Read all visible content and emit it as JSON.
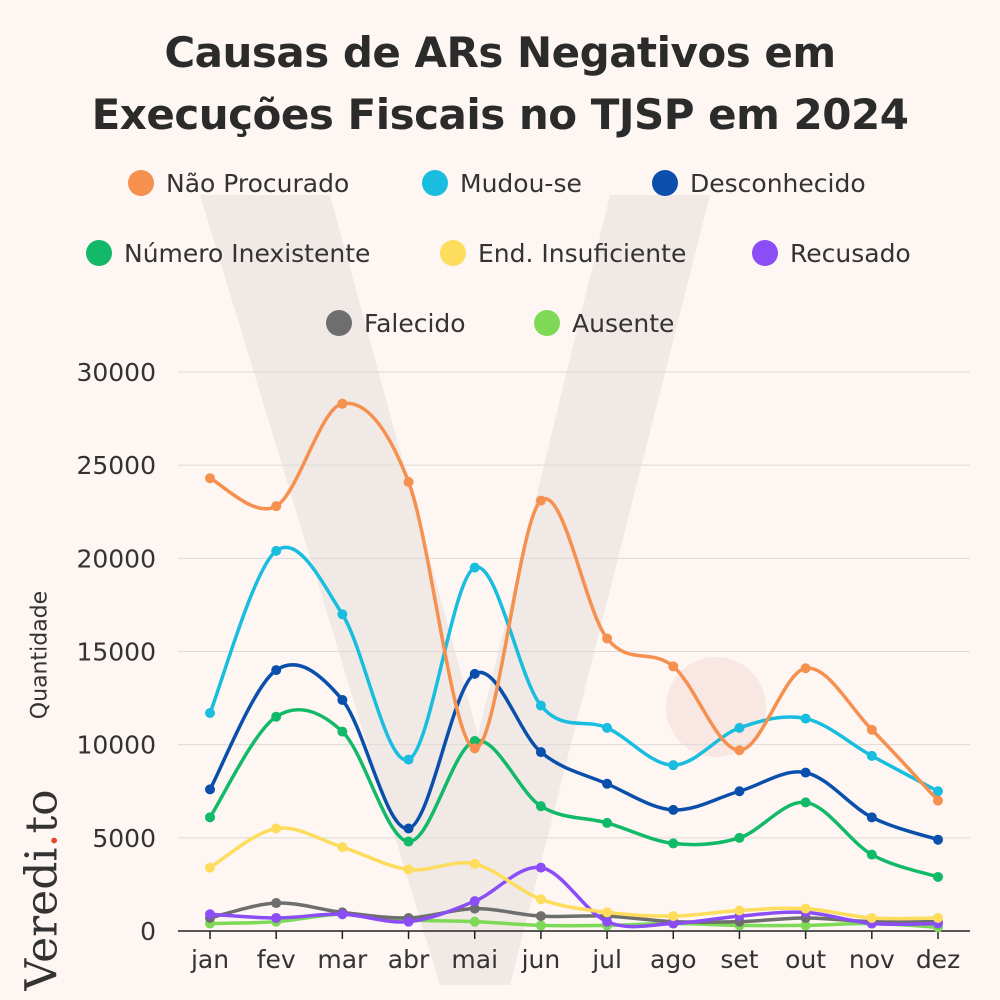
{
  "title_lines": [
    "Causas de ARs Negativos em",
    "Execuções Fiscais no TJSP em 2024"
  ],
  "brand": {
    "name_part1": "Veredi",
    "name_dot": ".",
    "name_part2": "to"
  },
  "chart_data": {
    "type": "line",
    "title": "Causas de ARs Negativos em Execuções Fiscais no TJSP em 2024",
    "xlabel": "",
    "ylabel": "Quantidade",
    "ylim": [
      0,
      30000
    ],
    "yticks": [
      0,
      5000,
      10000,
      15000,
      20000,
      25000,
      30000
    ],
    "grid": "horizontal",
    "legend_placement": "top",
    "categories": [
      "jan",
      "fev",
      "mar",
      "abr",
      "mai",
      "jun",
      "jul",
      "ago",
      "set",
      "out",
      "nov",
      "dez"
    ],
    "series": [
      {
        "name": "Não Procurado",
        "color": "#f5904f",
        "values": [
          24300,
          22800,
          28300,
          24100,
          9800,
          23100,
          15700,
          14200,
          9700,
          14100,
          10800,
          7000
        ]
      },
      {
        "name": "Mudou-se",
        "color": "#18bddf",
        "values": [
          11700,
          20400,
          17000,
          9200,
          19500,
          12100,
          10900,
          8900,
          10900,
          11400,
          9400,
          7500
        ]
      },
      {
        "name": "Desconhecido",
        "color": "#0a4fab",
        "values": [
          7600,
          14000,
          12400,
          5500,
          13800,
          9600,
          7900,
          6500,
          7500,
          8500,
          6100,
          4900
        ]
      },
      {
        "name": "Número Inexistente",
        "color": "#11b968",
        "values": [
          6100,
          11500,
          10700,
          4800,
          10200,
          6700,
          5800,
          4700,
          5000,
          6900,
          4100,
          2900
        ]
      },
      {
        "name": "End. Insuficiente",
        "color": "#fddd5b",
        "values": [
          3400,
          5500,
          4500,
          3300,
          3600,
          1700,
          1000,
          800,
          1100,
          1200,
          700,
          700
        ]
      },
      {
        "name": "Recusado",
        "color": "#8b4df5",
        "values": [
          900,
          700,
          900,
          500,
          1600,
          3400,
          500,
          400,
          800,
          1000,
          400,
          400
        ]
      },
      {
        "name": "Falecido",
        "color": "#6e6e6e",
        "values": [
          700,
          1500,
          1000,
          700,
          1200,
          800,
          800,
          500,
          500,
          700,
          500,
          500
        ]
      },
      {
        "name": "Ausente",
        "color": "#7ed957",
        "values": [
          400,
          500,
          900,
          600,
          500,
          300,
          300,
          400,
          300,
          300,
          400,
          200
        ]
      }
    ]
  }
}
